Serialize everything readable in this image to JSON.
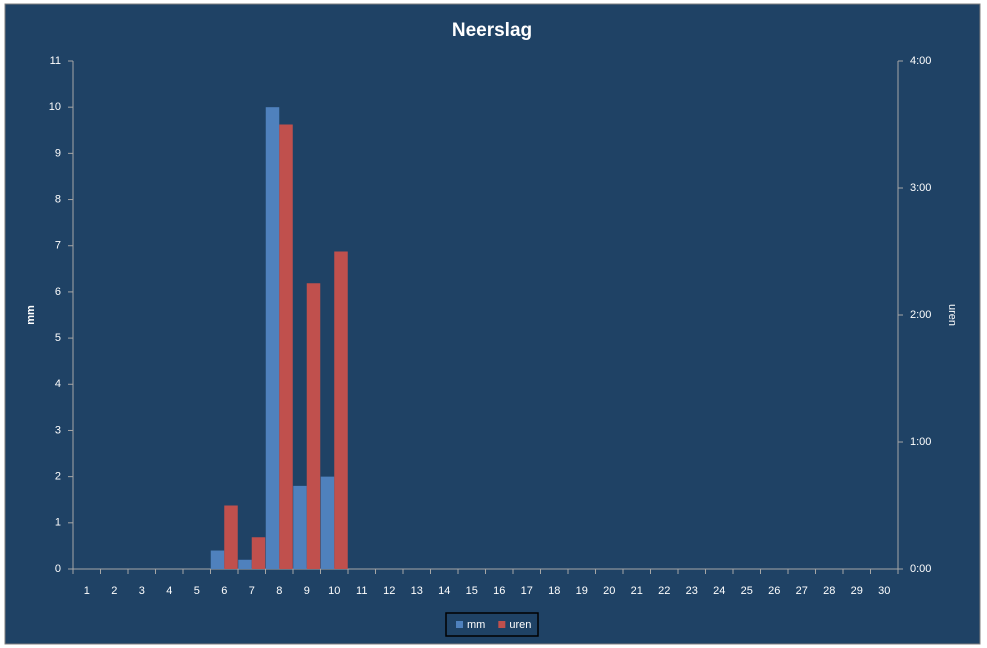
{
  "chart_data": {
    "type": "bar",
    "title": "Neerslag",
    "y_label": "mm",
    "y2_label": "uren",
    "categories": [
      "1",
      "2",
      "3",
      "4",
      "5",
      "6",
      "7",
      "8",
      "9",
      "10",
      "11",
      "12",
      "13",
      "14",
      "15",
      "16",
      "17",
      "18",
      "19",
      "20",
      "21",
      "22",
      "23",
      "24",
      "25",
      "26",
      "27",
      "28",
      "29",
      "30"
    ],
    "series": [
      {
        "name": "mm",
        "color": "#4f81bd",
        "values": [
          null,
          null,
          null,
          null,
          null,
          0.4,
          0.2,
          10,
          1.8,
          2,
          null,
          null,
          null,
          null,
          null,
          null,
          null,
          null,
          null,
          null,
          null,
          null,
          null,
          null,
          null,
          null,
          null,
          null,
          null,
          null
        ]
      },
      {
        "name": "uren",
        "color": "#c0504d",
        "axis": "y2",
        "values": [
          null,
          null,
          null,
          null,
          null,
          0.5,
          0.25,
          3.5,
          2.25,
          2.5,
          null,
          null,
          null,
          null,
          null,
          null,
          null,
          null,
          null,
          null,
          null,
          null,
          null,
          null,
          null,
          null,
          null,
          null,
          null,
          null
        ]
      }
    ],
    "ylim": [
      0,
      11
    ],
    "yticks": [
      0,
      1,
      2,
      3,
      4,
      5,
      6,
      7,
      8,
      9,
      10,
      11
    ],
    "y2lim": [
      0,
      4
    ],
    "y2ticks": [
      {
        "value": 0,
        "label": "0:00"
      },
      {
        "value": 1,
        "label": "1:00"
      },
      {
        "value": 2,
        "label": "2:00"
      },
      {
        "value": 3,
        "label": "3:00"
      },
      {
        "value": 4,
        "label": "4:00"
      }
    ],
    "legend": "bottom",
    "background": "#1f4265"
  }
}
